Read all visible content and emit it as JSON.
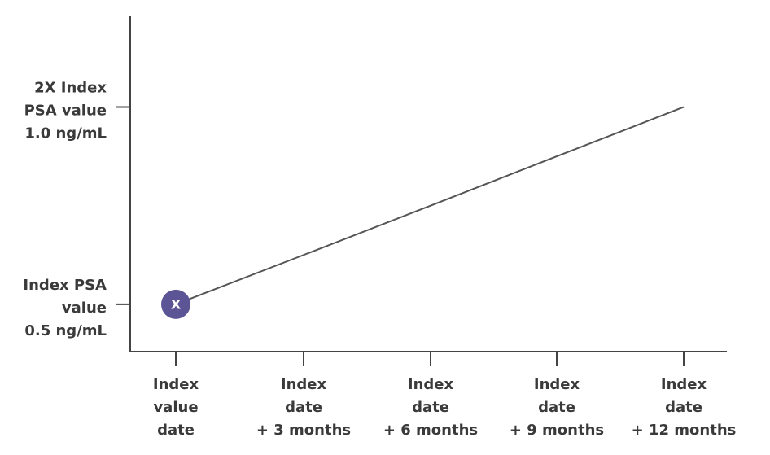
{
  "chart_data": {
    "type": "line",
    "categories": [
      [
        "Index",
        "value",
        "date"
      ],
      [
        "Index",
        "date",
        "+ 3 months"
      ],
      [
        "Index",
        "date",
        "+ 6 months"
      ],
      [
        "Index",
        "date",
        "+ 9 months"
      ],
      [
        "Index",
        "date",
        "+ 12 months"
      ]
    ],
    "series": [
      {
        "color": "#555555",
        "values": [
          0.5,
          0.625,
          0.75,
          0.875,
          1.0
        ]
      }
    ],
    "marker_label": "X",
    "marker_color": "#5b5596",
    "ylim": [
      0.38,
      1.23
    ],
    "yticks": [
      {
        "value": 0.5,
        "label": [
          "Index PSA",
          "value",
          "0.5 ng/mL"
        ]
      },
      {
        "value": 1.0,
        "label": [
          "2X Index",
          "PSA value",
          "1.0 ng/mL"
        ]
      }
    ]
  }
}
